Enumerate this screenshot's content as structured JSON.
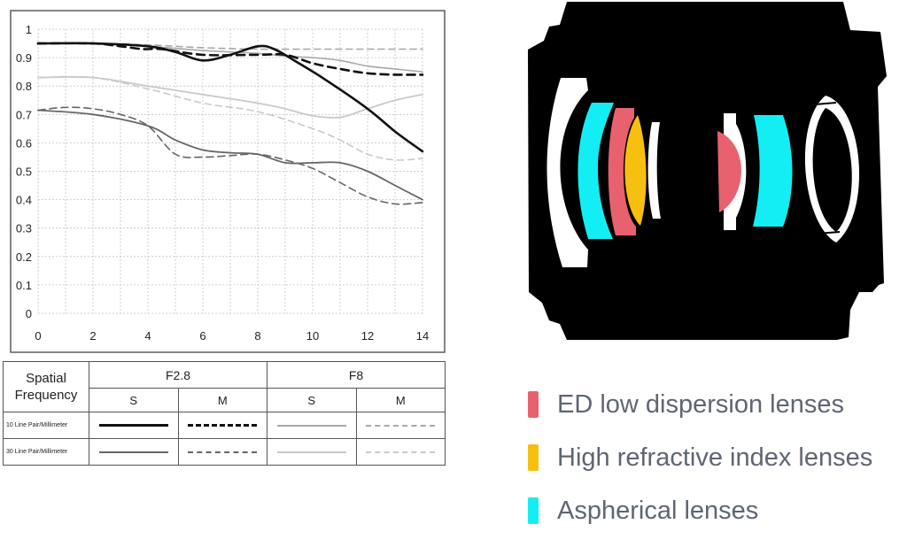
{
  "chart_data": {
    "type": "line",
    "title": "",
    "xlabel": "",
    "ylabel": "",
    "xlim": [
      0,
      14
    ],
    "ylim": [
      0,
      1
    ],
    "grid": true,
    "x_ticks": [
      "0",
      "2",
      "4",
      "6",
      "8",
      "10",
      "12",
      "14"
    ],
    "y_ticks": [
      "0",
      "0.1",
      "0.2",
      "0.3",
      "0.4",
      "0.5",
      "0.6",
      "0.7",
      "0.8",
      "0.9",
      "1"
    ],
    "series": [
      {
        "style": {
          "color": "#111111",
          "width": 2.6,
          "dash": ""
        },
        "points": [
          [
            0,
            0.95
          ],
          [
            2,
            0.95
          ],
          [
            4,
            0.94
          ],
          [
            5,
            0.92
          ],
          [
            6,
            0.89
          ],
          [
            7,
            0.91
          ],
          [
            8,
            0.94
          ],
          [
            8.6,
            0.93
          ],
          [
            9.5,
            0.88
          ],
          [
            10.5,
            0.82
          ],
          [
            12,
            0.72
          ],
          [
            13,
            0.64
          ],
          [
            14,
            0.57
          ]
        ]
      },
      {
        "style": {
          "color": "#111111",
          "width": 2.6,
          "dash": "9 6"
        },
        "points": [
          [
            0,
            0.95
          ],
          [
            2,
            0.95
          ],
          [
            3,
            0.94
          ],
          [
            3.8,
            0.93
          ],
          [
            4.5,
            0.93
          ],
          [
            6,
            0.91
          ],
          [
            8,
            0.91
          ],
          [
            9,
            0.91
          ],
          [
            10,
            0.88
          ],
          [
            11,
            0.86
          ],
          [
            12,
            0.845
          ],
          [
            13,
            0.84
          ],
          [
            14,
            0.84
          ]
        ]
      },
      {
        "style": {
          "color": "#a8a8a8",
          "width": 1.6,
          "dash": ""
        },
        "points": [
          [
            0,
            0.95
          ],
          [
            2,
            0.95
          ],
          [
            4,
            0.94
          ],
          [
            6,
            0.925
          ],
          [
            8,
            0.915
          ],
          [
            9,
            0.905
          ],
          [
            10,
            0.9
          ],
          [
            11,
            0.89
          ],
          [
            12,
            0.87
          ],
          [
            13,
            0.86
          ],
          [
            14,
            0.85
          ]
        ]
      },
      {
        "style": {
          "color": "#a8a8a8",
          "width": 1.6,
          "dash": "7 5"
        },
        "points": [
          [
            0,
            0.95
          ],
          [
            2,
            0.95
          ],
          [
            4,
            0.945
          ],
          [
            6,
            0.935
          ],
          [
            8,
            0.93
          ],
          [
            10,
            0.93
          ],
          [
            12,
            0.93
          ],
          [
            14,
            0.93
          ]
        ]
      },
      {
        "style": {
          "color": "#666666",
          "width": 1.8,
          "dash": ""
        },
        "points": [
          [
            0,
            0.715
          ],
          [
            2,
            0.7
          ],
          [
            4,
            0.66
          ],
          [
            5,
            0.61
          ],
          [
            6,
            0.575
          ],
          [
            7,
            0.565
          ],
          [
            8,
            0.56
          ],
          [
            9,
            0.53
          ],
          [
            10,
            0.53
          ],
          [
            11,
            0.53
          ],
          [
            12,
            0.5
          ],
          [
            13,
            0.45
          ],
          [
            14,
            0.4
          ]
        ]
      },
      {
        "style": {
          "color": "#666666",
          "width": 1.6,
          "dash": "8 5"
        },
        "points": [
          [
            0,
            0.715
          ],
          [
            1,
            0.725
          ],
          [
            2,
            0.72
          ],
          [
            3,
            0.7
          ],
          [
            4,
            0.66
          ],
          [
            5,
            0.56
          ],
          [
            6,
            0.55
          ],
          [
            7,
            0.555
          ],
          [
            8,
            0.56
          ],
          [
            9,
            0.54
          ],
          [
            10,
            0.51
          ],
          [
            11,
            0.46
          ],
          [
            12,
            0.41
          ],
          [
            13,
            0.385
          ],
          [
            14,
            0.39
          ]
        ]
      },
      {
        "style": {
          "color": "#c9c9c9",
          "width": 1.8,
          "dash": ""
        },
        "points": [
          [
            0,
            0.83
          ],
          [
            2,
            0.83
          ],
          [
            4,
            0.8
          ],
          [
            6,
            0.77
          ],
          [
            8,
            0.74
          ],
          [
            9,
            0.72
          ],
          [
            10,
            0.695
          ],
          [
            11,
            0.69
          ],
          [
            12,
            0.72
          ],
          [
            13,
            0.75
          ],
          [
            14,
            0.77
          ]
        ]
      },
      {
        "style": {
          "color": "#c9c9c9",
          "width": 1.6,
          "dash": "7 5"
        },
        "points": [
          [
            0,
            0.83
          ],
          [
            2,
            0.83
          ],
          [
            4,
            0.79
          ],
          [
            6,
            0.74
          ],
          [
            8,
            0.71
          ],
          [
            10,
            0.65
          ],
          [
            11,
            0.61
          ],
          [
            12,
            0.56
          ],
          [
            13,
            0.54
          ],
          [
            14,
            0.545
          ]
        ]
      }
    ]
  },
  "legend_table": {
    "spatial_label": "Spatial\nFrequency",
    "aperture_1": "F2.8",
    "aperture_2": "F8",
    "sagittal": "S",
    "meridional": "M",
    "row_10": "10 Line Pair/Millimeter",
    "row_30": "30 Line Pair/Millimeter"
  },
  "lens_legend": [
    {
      "label": "ED low dispersion lenses",
      "color": "#e8616e"
    },
    {
      "label": "High refractive index lenses",
      "color": "#f7bf10"
    },
    {
      "label": "Aspherical lenses",
      "color": "#12eef4"
    }
  ],
  "colors": {
    "ed": "#e8616e",
    "high_index": "#f7bf10",
    "aspherical": "#12eef4",
    "lens_body": "#000000",
    "plain_glass": "#ffffff"
  }
}
